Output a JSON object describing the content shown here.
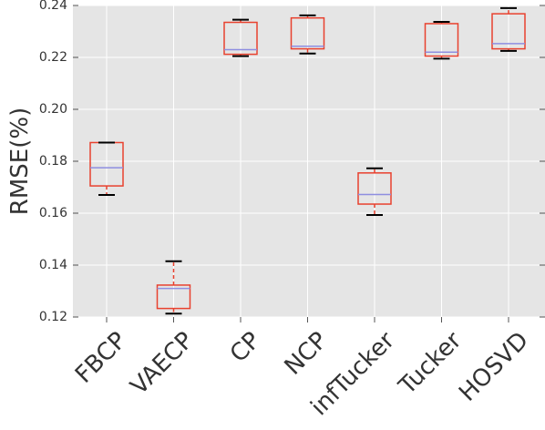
{
  "chart_data": {
    "type": "box",
    "ylabel": "RMSE(%)",
    "xlabel": "",
    "title": "",
    "ylim": [
      0.12,
      0.24
    ],
    "yticks": [
      "0.12",
      "0.14",
      "0.16",
      "0.18",
      "0.20",
      "0.22",
      "0.24"
    ],
    "grid": true,
    "background_color": "#e5e5e5",
    "grid_color": "#ffffff",
    "box_color": "#e8412e",
    "median_color": "#8e8ee0",
    "whisker_cap_color": "#000000",
    "categories": [
      "FBCP",
      "VAECP",
      "CP",
      "NCP",
      "infTucker",
      "Tucker",
      "HOSVD"
    ],
    "boxes": [
      {
        "label": "FBCP",
        "whislo": 0.167,
        "q1": 0.1705,
        "med": 0.1775,
        "q3": 0.1872,
        "whishi": 0.1872
      },
      {
        "label": "VAECP",
        "whislo": 0.1213,
        "q1": 0.1233,
        "med": 0.131,
        "q3": 0.1323,
        "whishi": 0.1415
      },
      {
        "label": "CP",
        "whislo": 0.2205,
        "q1": 0.2212,
        "med": 0.223,
        "q3": 0.2335,
        "whishi": 0.2345
      },
      {
        "label": "NCP",
        "whislo": 0.2215,
        "q1": 0.2233,
        "med": 0.2243,
        "q3": 0.2352,
        "whishi": 0.2362
      },
      {
        "label": "infTucker",
        "whislo": 0.1593,
        "q1": 0.1635,
        "med": 0.1672,
        "q3": 0.1755,
        "whishi": 0.1773
      },
      {
        "label": "Tucker",
        "whislo": 0.2195,
        "q1": 0.2205,
        "med": 0.222,
        "q3": 0.233,
        "whishi": 0.2337
      },
      {
        "label": "HOSVD",
        "whislo": 0.2225,
        "q1": 0.2233,
        "med": 0.2253,
        "q3": 0.2368,
        "whishi": 0.239
      }
    ]
  }
}
